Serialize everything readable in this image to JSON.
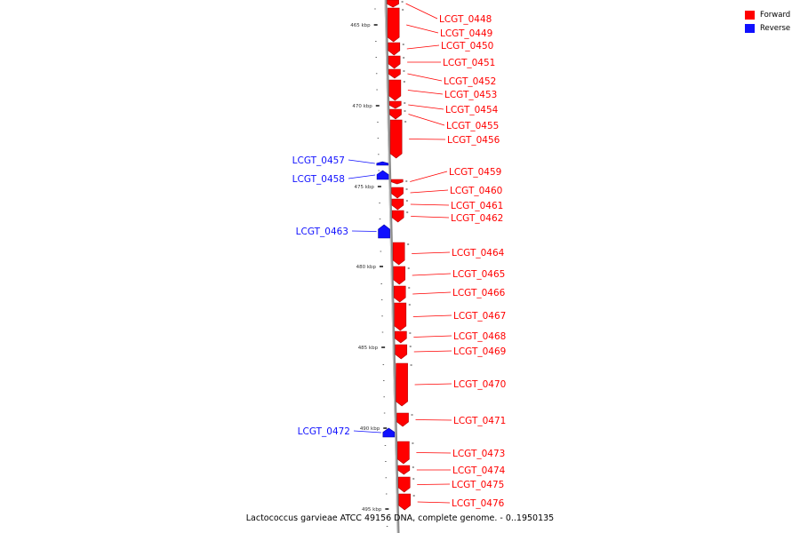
{
  "caption": "Lactococcus garvieae ATCC 49156 DNA, complete genome. - 0..1950135",
  "legend": [
    {
      "label": "Forward",
      "color": "#ff0000"
    },
    {
      "label": "Reverse",
      "color": "#1010ff"
    }
  ],
  "colors": {
    "forward": "#ff0000",
    "reverse": "#1010ff",
    "backbone": "#8a8a8a"
  },
  "scale_ticks": [
    "465 kbp",
    "470 kbp",
    "475 kbp",
    "480 kbp",
    "485 kbp",
    "490 kbp",
    "495 kbp"
  ],
  "genes": [
    {
      "id": "LCGT_0448",
      "strand": "forward"
    },
    {
      "id": "LCGT_0449",
      "strand": "forward"
    },
    {
      "id": "LCGT_0450",
      "strand": "forward"
    },
    {
      "id": "LCGT_0451",
      "strand": "forward"
    },
    {
      "id": "LCGT_0452",
      "strand": "forward"
    },
    {
      "id": "LCGT_0453",
      "strand": "forward"
    },
    {
      "id": "LCGT_0454",
      "strand": "forward"
    },
    {
      "id": "LCGT_0455",
      "strand": "forward"
    },
    {
      "id": "LCGT_0456",
      "strand": "forward"
    },
    {
      "id": "LCGT_0457",
      "strand": "reverse"
    },
    {
      "id": "LCGT_0458",
      "strand": "reverse"
    },
    {
      "id": "LCGT_0459",
      "strand": "forward"
    },
    {
      "id": "LCGT_0460",
      "strand": "forward"
    },
    {
      "id": "LCGT_0461",
      "strand": "forward"
    },
    {
      "id": "LCGT_0462",
      "strand": "forward"
    },
    {
      "id": "LCGT_0463",
      "strand": "reverse"
    },
    {
      "id": "LCGT_0464",
      "strand": "forward"
    },
    {
      "id": "LCGT_0465",
      "strand": "forward"
    },
    {
      "id": "LCGT_0466",
      "strand": "forward"
    },
    {
      "id": "LCGT_0467",
      "strand": "forward"
    },
    {
      "id": "LCGT_0468",
      "strand": "forward"
    },
    {
      "id": "LCGT_0469",
      "strand": "forward"
    },
    {
      "id": "LCGT_0470",
      "strand": "forward"
    },
    {
      "id": "LCGT_0471",
      "strand": "forward"
    },
    {
      "id": "LCGT_0472",
      "strand": "reverse"
    },
    {
      "id": "LCGT_0473",
      "strand": "forward"
    },
    {
      "id": "LCGT_0474",
      "strand": "forward"
    },
    {
      "id": "LCGT_0475",
      "strand": "forward"
    },
    {
      "id": "LCGT_0476",
      "strand": "forward"
    }
  ]
}
